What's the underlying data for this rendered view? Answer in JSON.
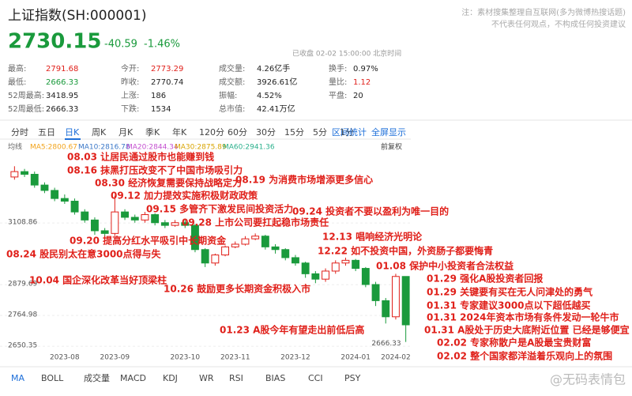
{
  "header": {
    "title": "上证指数(SH:000001)",
    "price": "2730.15",
    "change": "-40.59",
    "change_pct": "-1.46%",
    "note": [
      "注：素材搜集整理自互联网(多为微博热搜话题)",
      "不代表任何观点，不构成任何投资建议"
    ],
    "status": "已收盘 02-02 15:00:00 北京时间"
  },
  "stats": [
    [
      {
        "label": "最高:",
        "value": "2791.68",
        "color": "#e0201a"
      },
      {
        "label": "今开:",
        "value": "2773.29",
        "color": "#e0201a"
      },
      {
        "label": "成交量:",
        "value": "4.26亿手",
        "color": "#222"
      },
      {
        "label": "换手:",
        "value": "0.97%",
        "color": "#222"
      }
    ],
    [
      {
        "label": "最低:",
        "value": "2666.33",
        "color": "#1a9a3c"
      },
      {
        "label": "昨收:",
        "value": "2770.74",
        "color": "#222"
      },
      {
        "label": "成交额:",
        "value": "3926.61亿",
        "color": "#222"
      },
      {
        "label": "量比:",
        "value": "1.12",
        "color": "#e0201a"
      }
    ],
    [
      {
        "label": "52周最高:",
        "value": "3418.95",
        "color": "#222"
      },
      {
        "label": "上涨:",
        "value": "186",
        "color": "#222"
      },
      {
        "label": "振幅:",
        "value": "4.52%",
        "color": "#222"
      },
      {
        "label": "平盘:",
        "value": "20",
        "color": "#222"
      }
    ],
    [
      {
        "label": "52周最低:",
        "value": "2666.33",
        "color": "#222"
      },
      {
        "label": "下跌:",
        "value": "1534",
        "color": "#222"
      },
      {
        "label": "总市值:",
        "value": "42.41万亿",
        "color": "#222"
      }
    ]
  ],
  "tabs": [
    "分时",
    "五日",
    "日K",
    "周K",
    "月K",
    "季K",
    "年K",
    "120分",
    "60分",
    "30分",
    "15分",
    "5分",
    "1分"
  ],
  "tools": [
    "区间统计",
    "全屏显示"
  ],
  "ma_legend": {
    "label": "均线",
    "items": [
      {
        "text": "MA5:2800.67",
        "color": "#f2a31b"
      },
      {
        "text": "MA10:2816.78",
        "color": "#3b78c8"
      },
      {
        "text": "MA20:2844.34",
        "color": "#c44fd0"
      },
      {
        "text": "MA30:2875.89",
        "color": "#d9a400"
      },
      {
        "text": "MA60:2941.36",
        "color": "#2bb08c"
      }
    ],
    "adjust": "前复权"
  },
  "chart_data": {
    "type": "candlestick",
    "up_color": "#e0201a",
    "down_color": "#1a9a3c",
    "grid": true,
    "categories": [
      null,
      null,
      null,
      null,
      null,
      "2023-08",
      null,
      null,
      null,
      null,
      "2023-09",
      null,
      null,
      null,
      null,
      null,
      null,
      "2023-10",
      null,
      null,
      null,
      null,
      "2023-11",
      null,
      null,
      null,
      null,
      null,
      "2023-12",
      null,
      null,
      null,
      null,
      null,
      "2024-01",
      null,
      null,
      null,
      "2024-02",
      null
    ],
    "open": [
      3280,
      3300,
      3290,
      3250,
      3230,
      3200,
      3190,
      3150,
      3120,
      3080,
      3070,
      3150,
      3130,
      3120,
      3140,
      3110,
      3100,
      3110,
      3100,
      3010,
      2960,
      2990,
      3020,
      3030,
      3050,
      3060,
      3020,
      3010,
      2980,
      2960,
      2920,
      2900,
      2930,
      2960,
      2970,
      2940,
      2880,
      2820,
      2760,
      2910
    ],
    "high": [
      3320,
      3310,
      3300,
      3260,
      3240,
      3215,
      3200,
      3160,
      3130,
      3090,
      3210,
      3160,
      3140,
      3150,
      3145,
      3120,
      3120,
      3120,
      3105,
      3015,
      2995,
      3025,
      3040,
      3060,
      3070,
      3065,
      3030,
      3015,
      2990,
      2965,
      2930,
      2940,
      2970,
      2980,
      2975,
      2945,
      2890,
      2830,
      2920,
      2910
    ],
    "low": [
      3270,
      3280,
      3240,
      3220,
      3190,
      3180,
      3140,
      3110,
      3065,
      3050,
      3060,
      3120,
      3110,
      3110,
      3100,
      3090,
      3095,
      3090,
      3000,
      2945,
      2950,
      2985,
      3015,
      3025,
      3045,
      3010,
      2995,
      2970,
      2950,
      2905,
      2885,
      2890,
      2920,
      2950,
      2930,
      2870,
      2800,
      2735,
      2750,
      2666.33
    ],
    "close": [
      3300,
      3290,
      3250,
      3230,
      3200,
      3190,
      3150,
      3120,
      3080,
      3070,
      3150,
      3130,
      3120,
      3140,
      3110,
      3100,
      3110,
      3100,
      3010,
      2960,
      2990,
      3020,
      3030,
      3050,
      3060,
      3020,
      3010,
      2980,
      2960,
      2920,
      2900,
      2930,
      2960,
      2970,
      2940,
      2880,
      2820,
      2760,
      2910,
      2730
    ],
    "ylim": [
      2630,
      3365
    ],
    "yticks": [
      3108.86,
      2879.69,
      2764.98,
      2650.35
    ],
    "annotations": [
      "08.03 让居民通过股市也能赚到钱",
      "08.16 抹黑打压改变不了中国市场吸引力",
      "08.30 经济恢复需要保持战略定力",
      "09.12 加力提效实施积极财政政策",
      "08.19 为消费市场增添更多信心",
      "09.15 多管齐下激发民间投资活力",
      "09.28 上市公司要扛起稳市场责任",
      "09.24 投资者不要以盈利为唯一目的",
      "09.20 提高分红水平吸引中长期资金",
      "12.13 唱响经济光明论",
      "08.24 股民别太在意3000点得与失",
      "12.22 如不投资中国，外资肠子都要悔青",
      "01.08 保护中小投资者合法权益",
      "01.29 强化A股投资者回报",
      "10.04 国企深化改革当好顶梁柱",
      "10.26 鼓励更多长期资金积极入市",
      "01.29 关键要有买在无人问津处的勇气",
      "01.31 专家建议3000点以下超低越买",
      "01.31 2024年资本市场有条件发动一轮牛市",
      "01.31 A股处于历史大底附近位置 已经是够便宜",
      "01.23 A股今年有望走出前低后高",
      "02.02 专家称散户是A股最宝贵财富",
      "02.02 整个国家都洋溢着乐观向上的氛围"
    ]
  },
  "indicators": [
    "MA",
    "BOLL",
    "成交量",
    "MACD",
    "KDJ",
    "WR",
    "RSI",
    "BIAS",
    "CCI",
    "PSY"
  ],
  "watermark": "@无码表情包"
}
